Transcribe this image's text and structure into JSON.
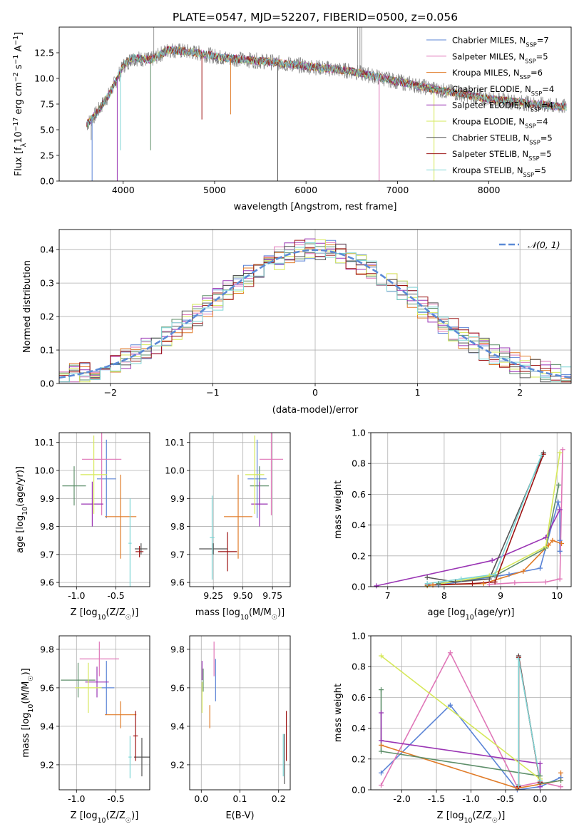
{
  "figure_title": "PLATE=0547, MJD=52207, FIBERID=0500, z=0.056",
  "colors": {
    "chabrier_miles": "#5b84d6",
    "salpeter_miles": "#e077b8",
    "kroupa_miles": "#e07b28",
    "chabrier_elodie": "#5e8f6a",
    "salpeter_elodie": "#9a35b4",
    "kroupa_elodie": "#d6e85a",
    "chabrier_stelib": "#555555",
    "salpeter_stelib": "#9c1414",
    "kroupa_stelib": "#7fd6d6",
    "data": "#808080",
    "grid": "#b0b0b0",
    "normal_curve": "#5b8ad6"
  },
  "series_names": [
    "Chabrier MILES, N_SSP=7",
    "Salpeter MILES, N_SSP=5",
    "Kroupa MILES, N_SSP=6",
    "Chabrier ELODIE, N_SSP=4",
    "Salpeter ELODIE, N_SSP=4",
    "Kroupa ELODIE, N_SSP=4",
    "Chabrier STELIB, N_SSP=5",
    "Salpeter STELIB, N_SSP=5",
    "Kroupa STELIB, N_SSP=5"
  ],
  "chart_data": [
    {
      "id": "spectrum",
      "type": "line",
      "xlabel": "wavelength [Angstrom, rest frame]",
      "ylabel": "Flux [f_λ 10^-17 erg cm^-2 s^-1 A^-1]",
      "xlim": [
        3300,
        8900
      ],
      "ylim": [
        0,
        15
      ],
      "xticks": [
        4000,
        5000,
        6000,
        7000,
        8000
      ],
      "yticks": [
        0.0,
        2.5,
        5.0,
        7.5,
        10.0,
        12.5
      ],
      "grid": false,
      "legend": "top-right",
      "x_range": [
        3600,
        8850
      ],
      "data_spikes": [
        [
          3650,
          4.0
        ],
        [
          4335,
          15.0
        ],
        [
          6563,
          15.0
        ],
        [
          6590,
          15.0
        ],
        [
          6610,
          15.0
        ]
      ],
      "model_dips": [
        [
          3660,
          0.0
        ],
        [
          3935,
          0.0
        ],
        [
          3970,
          3.0
        ],
        [
          4300,
          3.0
        ],
        [
          4861,
          6.0
        ],
        [
          5175,
          6.5
        ],
        [
          5690,
          0.0
        ],
        [
          6800,
          0.0
        ],
        [
          7400,
          0.0
        ]
      ],
      "continuum_knots": [
        [
          3600,
          5.5
        ],
        [
          3700,
          6.5
        ],
        [
          3850,
          8.5
        ],
        [
          4000,
          11.2
        ],
        [
          4100,
          12.0
        ],
        [
          4300,
          11.8
        ],
        [
          4500,
          12.8
        ],
        [
          4800,
          12.5
        ],
        [
          5100,
          12.0
        ],
        [
          5500,
          11.7
        ],
        [
          6000,
          11.2
        ],
        [
          6500,
          10.7
        ],
        [
          7000,
          9.7
        ],
        [
          7500,
          8.8
        ],
        [
          8000,
          8.0
        ],
        [
          8500,
          7.5
        ],
        [
          8850,
          7.2
        ]
      ]
    },
    {
      "id": "residuals",
      "type": "histogram",
      "xlabel": "(data-model)/error",
      "ylabel": "Normed distribution",
      "xlim": [
        -2.5,
        2.5
      ],
      "ylim": [
        0,
        0.46
      ],
      "xticks": [
        -2,
        -1,
        0,
        1,
        2
      ],
      "yticks": [
        0.0,
        0.1,
        0.2,
        0.3,
        0.4
      ],
      "grid": true,
      "legend": "top-right",
      "legend_label": "N(0,1)",
      "bin_width": 0.1
    },
    {
      "id": "age_vs_z",
      "type": "scatter",
      "xlabel": "Z [log10(Z/Z☉)]",
      "ylabel": "age  [log10(age/yr)]",
      "xlim": [
        -1.22,
        -0.07
      ],
      "ylim": [
        9.585,
        10.135
      ],
      "xticks": [
        -1.0,
        -0.5
      ],
      "yticks": [
        9.6,
        9.7,
        9.8,
        9.9,
        10.0,
        10.1
      ],
      "grid": true,
      "points": [
        {
          "s": 0,
          "x": -0.62,
          "y": 9.97,
          "xe": 0.12,
          "ye": 0.14
        },
        {
          "s": 1,
          "x": -0.68,
          "y": 10.04,
          "xe": 0.25,
          "ye": 0.2
        },
        {
          "s": 2,
          "x": -0.44,
          "y": 9.835,
          "xe": 0.2,
          "ye": 0.15
        },
        {
          "s": 3,
          "x": -1.03,
          "y": 9.945,
          "xe": 0.15,
          "ye": 0.07
        },
        {
          "s": 4,
          "x": -0.8,
          "y": 9.88,
          "xe": 0.14,
          "ye": 0.08
        },
        {
          "s": 5,
          "x": -0.78,
          "y": 9.985,
          "xe": 0.17,
          "ye": 0.14
        },
        {
          "s": 6,
          "x": -0.18,
          "y": 9.72,
          "xe": 0.08,
          "ye": 0.02
        },
        {
          "s": 7,
          "x": -0.2,
          "y": 9.71,
          "xe": 0.05,
          "ye": 0.02
        },
        {
          "s": 8,
          "x": -0.32,
          "y": 9.74,
          "xe": 0.02,
          "ye": 0.16
        }
      ]
    },
    {
      "id": "age_vs_mass",
      "type": "scatter",
      "xlabel": "mass [log10(M/M☉)]",
      "ylabel": "",
      "xlim": [
        9.05,
        9.9
      ],
      "ylim": [
        9.585,
        10.135
      ],
      "xticks": [
        9.25,
        9.5,
        9.75
      ],
      "yticks": [
        9.6,
        9.7,
        9.8,
        9.9,
        10.0,
        10.1
      ],
      "grid": true,
      "points": [
        {
          "s": 0,
          "x": 9.62,
          "y": 9.97,
          "xe": 0.08,
          "ye": 0.14
        },
        {
          "s": 1,
          "x": 9.74,
          "y": 10.04,
          "xe": 0.1,
          "ye": 0.2
        },
        {
          "s": 2,
          "x": 9.46,
          "y": 9.835,
          "xe": 0.12,
          "ye": 0.15
        },
        {
          "s": 3,
          "x": 9.64,
          "y": 9.945,
          "xe": 0.08,
          "ye": 0.07
        },
        {
          "s": 4,
          "x": 9.64,
          "y": 9.88,
          "xe": 0.07,
          "ye": 0.08
        },
        {
          "s": 5,
          "x": 9.6,
          "y": 9.985,
          "xe": 0.08,
          "ye": 0.14
        },
        {
          "s": 6,
          "x": 9.25,
          "y": 9.72,
          "xe": 0.12,
          "ye": 0.02
        },
        {
          "s": 7,
          "x": 9.37,
          "y": 9.71,
          "xe": 0.08,
          "ye": 0.07
        },
        {
          "s": 8,
          "x": 9.24,
          "y": 9.76,
          "xe": 0.02,
          "ye": 0.15
        }
      ]
    },
    {
      "id": "mass_weight_vs_age",
      "type": "line",
      "xlabel": "age  [log10(age/yr)]",
      "ylabel": "mass weight",
      "xlim": [
        6.7,
        10.25
      ],
      "ylim": [
        0,
        1.0
      ],
      "xticks": [
        7,
        8,
        9,
        10
      ],
      "yticks": [
        0.0,
        0.2,
        0.4,
        0.6,
        0.8,
        1.0
      ],
      "grid": true,
      "series": [
        {
          "s": 0,
          "x": [
            7.9,
            9.15,
            9.7,
            10.02,
            10.05,
            10.05,
            10.05
          ],
          "y": [
            0.01,
            0.08,
            0.12,
            0.55,
            0.5,
            0.3,
            0.23
          ]
        },
        {
          "s": 1,
          "x": [
            8.8,
            9.25,
            9.8,
            10.05,
            10.1
          ],
          "y": [
            0.015,
            0.025,
            0.03,
            0.05,
            0.89
          ]
        },
        {
          "s": 2,
          "x": [
            7.8,
            8.7,
            9.4,
            9.85,
            9.92,
            10.08
          ],
          "y": [
            0.01,
            0.02,
            0.1,
            0.27,
            0.3,
            0.28
          ]
        },
        {
          "s": 3,
          "x": [
            7.9,
            8.9,
            9.8,
            10.03
          ],
          "y": [
            0.02,
            0.07,
            0.25,
            0.66
          ]
        },
        {
          "s": 4,
          "x": [
            6.8,
            8.85,
            9.8,
            10.05
          ],
          "y": [
            0.005,
            0.17,
            0.32,
            0.5
          ]
        },
        {
          "s": 5,
          "x": [
            7.7,
            8.8,
            9.8,
            10.05
          ],
          "y": [
            0.005,
            0.07,
            0.26,
            0.87
          ]
        },
        {
          "s": 6,
          "x": [
            7.7,
            8.2,
            8.8,
            9.76
          ],
          "y": [
            0.06,
            0.03,
            0.05,
            0.87
          ]
        },
        {
          "s": 7,
          "x": [
            7.7,
            8.5,
            8.9,
            9.76
          ],
          "y": [
            0.01,
            0.02,
            0.03,
            0.86
          ]
        },
        {
          "s": 8,
          "x": [
            7.7,
            8.3,
            8.9,
            9.72
          ],
          "y": [
            0.02,
            0.05,
            0.08,
            0.85
          ]
        }
      ]
    },
    {
      "id": "mass_vs_z",
      "type": "scatter",
      "xlabel": "Z [log10(Z/Z☉)]",
      "ylabel": "mass [log10(M/M☉)]",
      "xlim": [
        -1.22,
        -0.07
      ],
      "ylim": [
        9.07,
        9.87
      ],
      "xticks": [
        -1.0,
        -0.5
      ],
      "yticks": [
        9.2,
        9.4,
        9.6,
        9.8
      ],
      "grid": true,
      "points": [
        {
          "s": 0,
          "x": -0.62,
          "y": 9.6,
          "xe": 0.1,
          "ye": 0.14
        },
        {
          "s": 1,
          "x": -0.71,
          "y": 9.75,
          "xe": 0.25,
          "ye": 0.09
        },
        {
          "s": 2,
          "x": -0.44,
          "y": 9.46,
          "xe": 0.2,
          "ye": 0.07
        },
        {
          "s": 3,
          "x": -0.98,
          "y": 9.64,
          "xe": 0.22,
          "ye": 0.09
        },
        {
          "s": 4,
          "x": -0.74,
          "y": 9.63,
          "xe": 0.15,
          "ye": 0.08
        },
        {
          "s": 5,
          "x": -0.85,
          "y": 9.6,
          "xe": 0.17,
          "ye": 0.13
        },
        {
          "s": 6,
          "x": -0.17,
          "y": 9.24,
          "xe": 0.1,
          "ye": 0.1
        },
        {
          "s": 7,
          "x": -0.25,
          "y": 9.35,
          "xe": 0.03,
          "ye": 0.13
        },
        {
          "s": 8,
          "x": -0.32,
          "y": 9.24,
          "xe": 0.02,
          "ye": 0.11
        }
      ]
    },
    {
      "id": "ebv",
      "type": "scatter",
      "xlabel": "E(B-V)",
      "ylabel": "",
      "xlim": [
        -0.03,
        0.23
      ],
      "ylim": [
        9.07,
        9.87
      ],
      "xticks": [
        0.0,
        0.1,
        0.2
      ],
      "yticks": [
        9.2,
        9.4,
        9.6,
        9.8
      ],
      "grid": true,
      "points": [
        {
          "s": 0,
          "x": 0.037,
          "y": 9.64,
          "xe": 0.0,
          "ye": 0.11
        },
        {
          "s": 1,
          "x": 0.033,
          "y": 9.75,
          "xe": 0.0,
          "ye": 0.09
        },
        {
          "s": 2,
          "x": 0.022,
          "y": 9.45,
          "xe": 0.0,
          "ye": 0.06
        },
        {
          "s": 3,
          "x": 0.005,
          "y": 9.64,
          "xe": 0.0,
          "ye": 0.06
        },
        {
          "s": 4,
          "x": 0.002,
          "y": 9.69,
          "xe": 0.0,
          "ye": 0.05
        },
        {
          "s": 5,
          "x": 0.002,
          "y": 9.55,
          "xe": 0.0,
          "ye": 0.08
        },
        {
          "s": 6,
          "x": 0.215,
          "y": 9.23,
          "xe": 0.0,
          "ye": 0.13
        },
        {
          "s": 7,
          "x": 0.22,
          "y": 9.35,
          "xe": 0.0,
          "ye": 0.13
        },
        {
          "s": 8,
          "x": 0.212,
          "y": 9.25,
          "xe": 0.0,
          "ye": 0.11
        }
      ]
    },
    {
      "id": "mass_weight_vs_z",
      "type": "line",
      "xlabel": "Z [log10(Z/Z☉)]",
      "ylabel": "mass weight",
      "xlim": [
        -2.45,
        0.45
      ],
      "ylim": [
        0,
        1.0
      ],
      "xticks": [
        -2.0,
        -1.5,
        -1.0,
        -0.5,
        0.0
      ],
      "yticks": [
        0.0,
        0.2,
        0.4,
        0.6,
        0.8,
        1.0
      ],
      "grid": true,
      "series": [
        {
          "s": 0,
          "x": [
            -2.3,
            -1.3,
            -0.33,
            0.0,
            0.3
          ],
          "y": [
            0.11,
            0.55,
            0.0,
            0.02,
            0.08
          ]
        },
        {
          "s": 1,
          "x": [
            -2.3,
            -1.3,
            -0.33,
            0.0,
            0.3
          ],
          "y": [
            0.03,
            0.89,
            0.02,
            0.05,
            0.02
          ]
        },
        {
          "s": 2,
          "x": [
            -2.3,
            -0.33,
            0.3,
            0.3
          ],
          "y": [
            0.29,
            0.01,
            0.06,
            0.11
          ]
        },
        {
          "s": 3,
          "x": [
            -2.3,
            -2.3,
            0.0,
            0.0,
            0.3
          ],
          "y": [
            0.65,
            0.25,
            0.09,
            0.04,
            0.06
          ]
        },
        {
          "s": 4,
          "x": [
            -2.3,
            -2.3,
            0.0,
            0.0
          ],
          "y": [
            0.5,
            0.32,
            0.17,
            0.02
          ]
        },
        {
          "s": 5,
          "x": [
            -2.3,
            0.0,
            0.0
          ],
          "y": [
            0.87,
            0.07,
            0.07
          ]
        },
        {
          "s": 6,
          "x": [
            -0.31,
            -0.31,
            0.0
          ],
          "y": [
            0.03,
            0.87,
            0.05
          ]
        },
        {
          "s": 7,
          "x": [
            -0.31,
            -0.31,
            0.0
          ],
          "y": [
            0.02,
            0.86,
            0.05
          ]
        },
        {
          "s": 8,
          "x": [
            -0.31,
            -0.31,
            0.0
          ],
          "y": [
            0.03,
            0.85,
            0.06
          ]
        }
      ]
    }
  ]
}
